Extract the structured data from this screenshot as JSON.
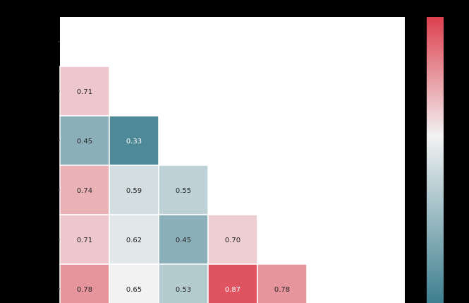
{
  "chart_data": {
    "type": "heatmap",
    "title": "",
    "xlabel": "",
    "ylabel": "",
    "mask": "upper-triangle",
    "rows": 6,
    "cols": 6,
    "cells": [
      {
        "row": 1,
        "col": 0,
        "value": 0.71,
        "label": "0.71"
      },
      {
        "row": 2,
        "col": 0,
        "value": 0.45,
        "label": "0.45"
      },
      {
        "row": 2,
        "col": 1,
        "value": 0.33,
        "label": "0.33"
      },
      {
        "row": 3,
        "col": 0,
        "value": 0.74,
        "label": "0.74"
      },
      {
        "row": 3,
        "col": 1,
        "value": 0.59,
        "label": "0.59"
      },
      {
        "row": 3,
        "col": 2,
        "value": 0.55,
        "label": "0.55"
      },
      {
        "row": 4,
        "col": 0,
        "value": 0.71,
        "label": "0.71"
      },
      {
        "row": 4,
        "col": 1,
        "value": 0.62,
        "label": "0.62"
      },
      {
        "row": 4,
        "col": 2,
        "value": 0.45,
        "label": "0.45"
      },
      {
        "row": 4,
        "col": 3,
        "value": 0.7,
        "label": "0.70"
      },
      {
        "row": 5,
        "col": 0,
        "value": 0.78,
        "label": "0.78"
      },
      {
        "row": 5,
        "col": 1,
        "value": 0.65,
        "label": "0.65"
      },
      {
        "row": 5,
        "col": 2,
        "value": 0.53,
        "label": "0.53"
      },
      {
        "row": 5,
        "col": 3,
        "value": 0.87,
        "label": "0.87"
      },
      {
        "row": 5,
        "col": 4,
        "value": 0.78,
        "label": "0.78"
      }
    ],
    "colorbar": {
      "orientation": "vertical",
      "range": [
        0.3,
        0.9
      ],
      "center": 0.65,
      "colors": {
        "low": "#3d7f8f",
        "mid": "#f2f2f2",
        "high": "#dd3f4e"
      }
    },
    "colors": {
      "background": "#000000",
      "plot_background": "#ffffff",
      "cell_border": "#ffffff"
    }
  }
}
